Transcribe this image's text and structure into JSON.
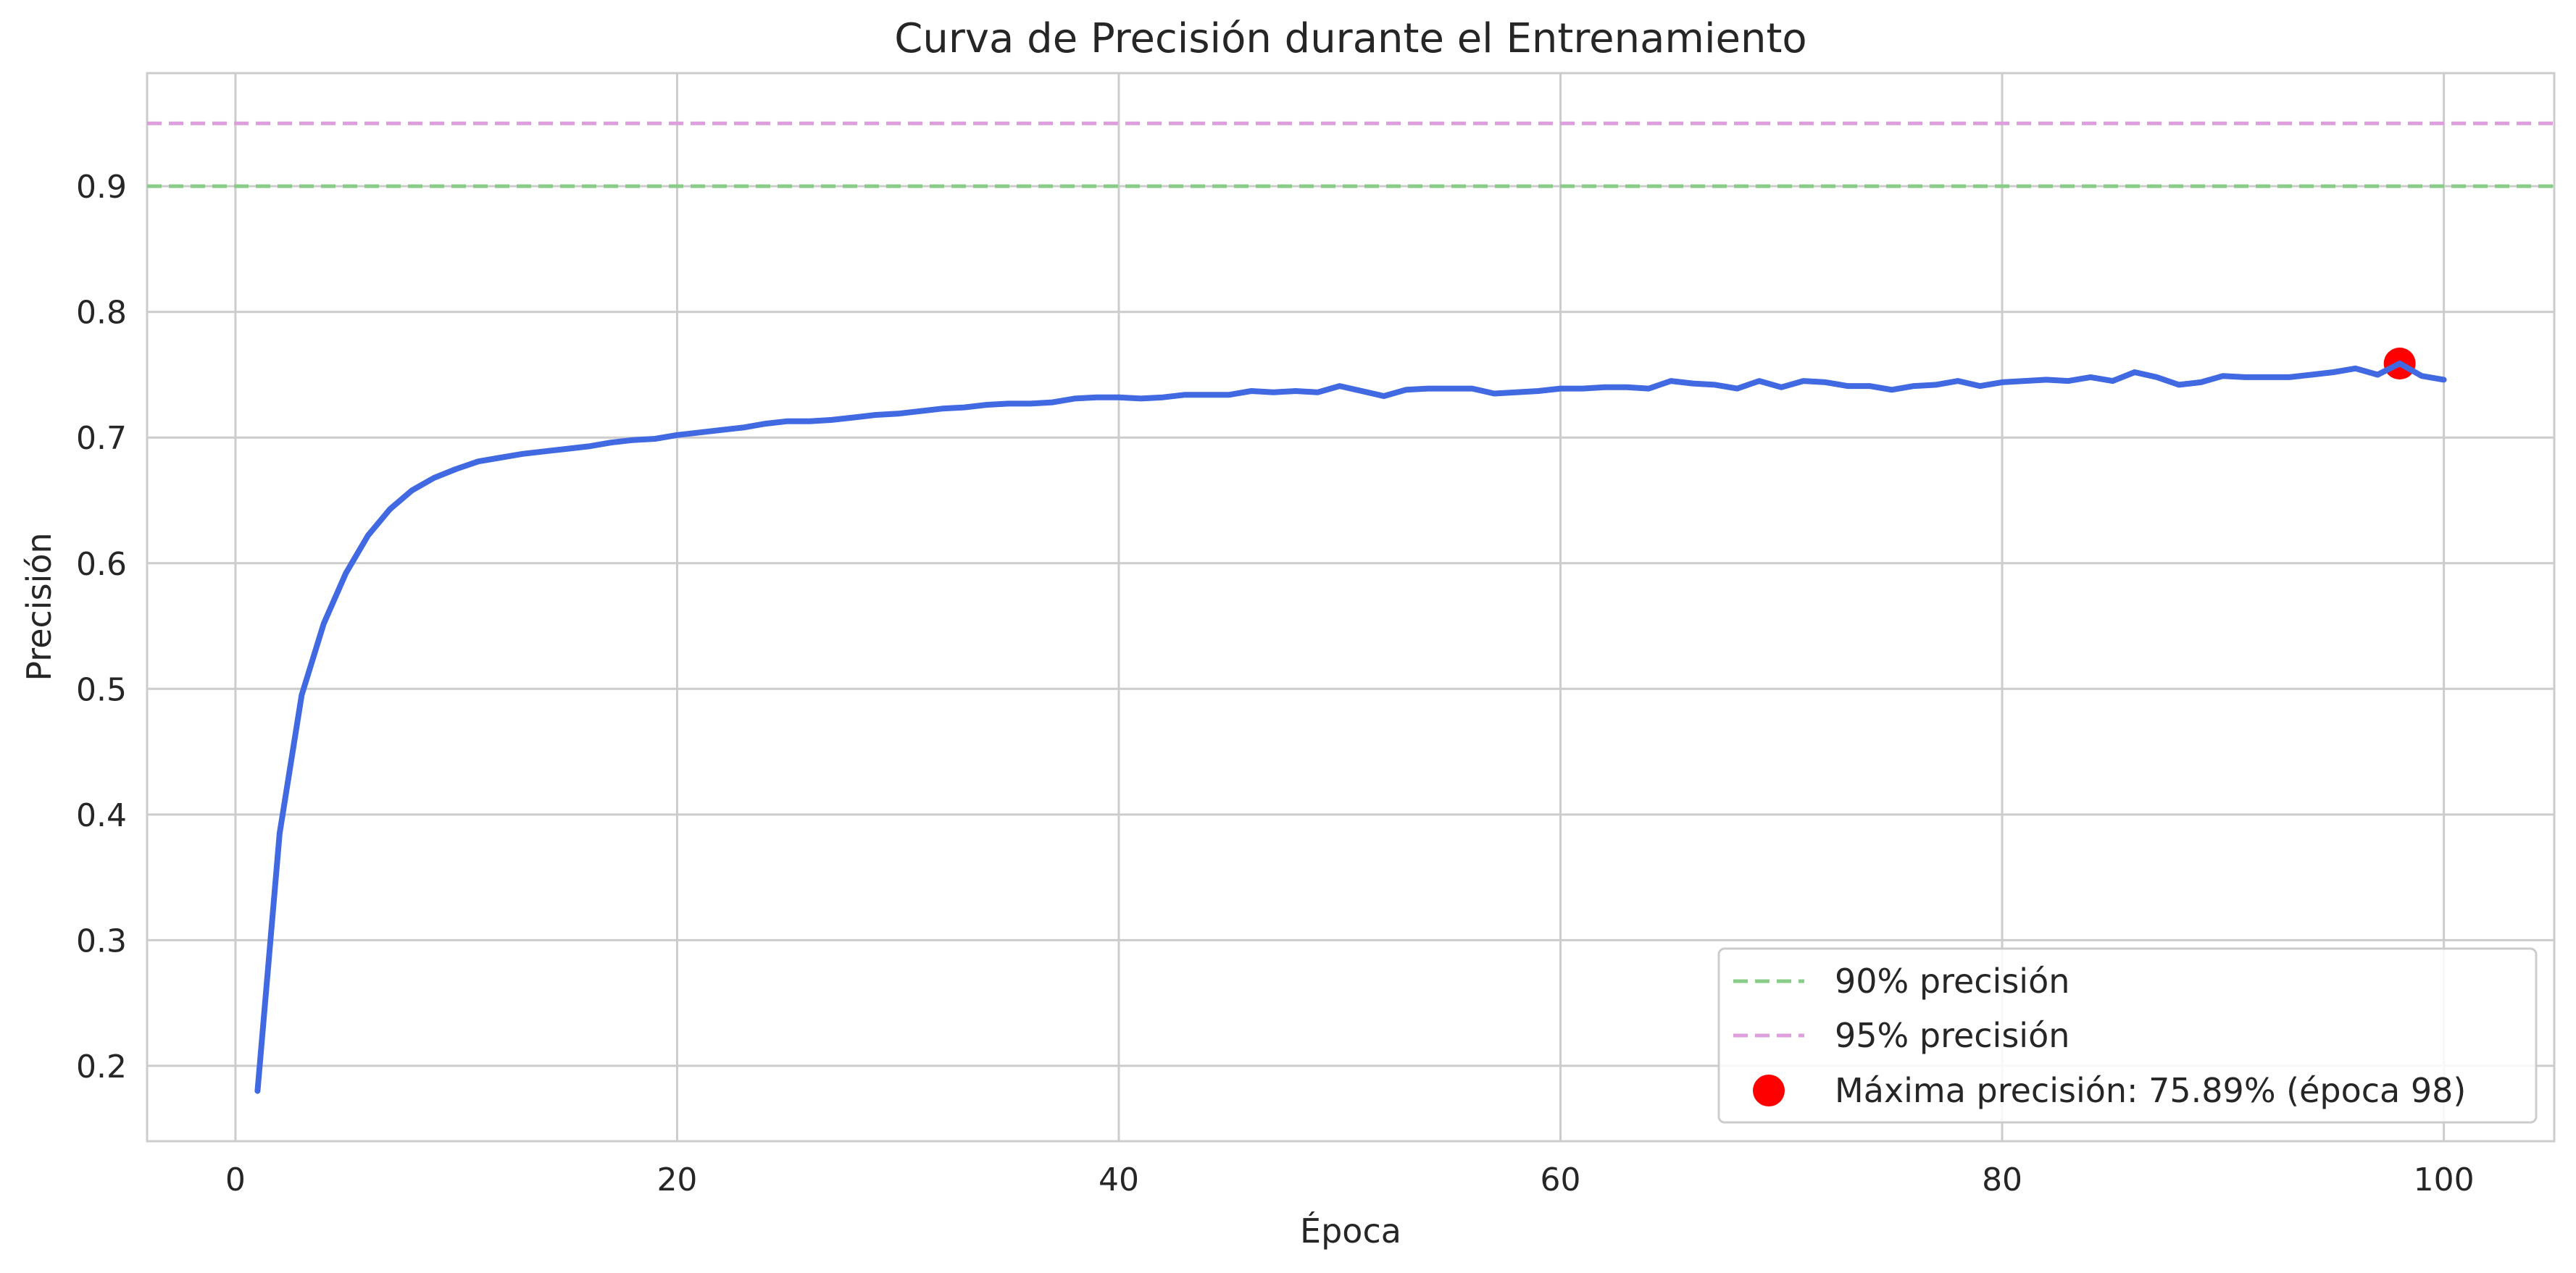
{
  "chart_data": {
    "type": "line",
    "title": "Curva de Precisión durante el Entrenamiento",
    "xlabel": "Época",
    "ylabel": "Precisión",
    "xlim": [
      -4,
      105
    ],
    "ylim": [
      0.14,
      0.99
    ],
    "xticks": [
      0,
      20,
      40,
      60,
      80,
      100
    ],
    "yticks": [
      0.2,
      0.3,
      0.4,
      0.5,
      0.6,
      0.7,
      0.8,
      0.9
    ],
    "grid": true,
    "legend_position": "lower-right",
    "series": [
      {
        "color": "#4169e1",
        "x": [
          1,
          2,
          3,
          4,
          5,
          6,
          7,
          8,
          9,
          10,
          11,
          12,
          13,
          14,
          15,
          16,
          17,
          18,
          19,
          20,
          21,
          22,
          23,
          24,
          25,
          26,
          27,
          28,
          29,
          30,
          31,
          32,
          33,
          34,
          35,
          36,
          37,
          38,
          39,
          40,
          41,
          42,
          43,
          44,
          45,
          46,
          47,
          48,
          49,
          50,
          51,
          52,
          53,
          54,
          55,
          56,
          57,
          58,
          59,
          60,
          61,
          62,
          63,
          64,
          65,
          66,
          67,
          68,
          69,
          70,
          71,
          72,
          73,
          74,
          75,
          76,
          77,
          78,
          79,
          80,
          81,
          82,
          83,
          84,
          85,
          86,
          87,
          88,
          89,
          90,
          91,
          92,
          93,
          94,
          95,
          96,
          97,
          98,
          99,
          100
        ],
        "y": [
          0.18,
          0.385,
          0.495,
          0.552,
          0.592,
          0.622,
          0.643,
          0.658,
          0.668,
          0.675,
          0.681,
          0.684,
          0.687,
          0.689,
          0.691,
          0.693,
          0.696,
          0.698,
          0.699,
          0.702,
          0.704,
          0.706,
          0.708,
          0.711,
          0.713,
          0.713,
          0.714,
          0.716,
          0.718,
          0.719,
          0.721,
          0.723,
          0.724,
          0.726,
          0.727,
          0.727,
          0.728,
          0.731,
          0.732,
          0.732,
          0.731,
          0.732,
          0.734,
          0.734,
          0.734,
          0.737,
          0.736,
          0.737,
          0.736,
          0.741,
          0.737,
          0.733,
          0.738,
          0.739,
          0.739,
          0.739,
          0.735,
          0.736,
          0.737,
          0.739,
          0.739,
          0.74,
          0.74,
          0.739,
          0.745,
          0.743,
          0.742,
          0.739,
          0.745,
          0.74,
          0.745,
          0.744,
          0.741,
          0.741,
          0.738,
          0.741,
          0.742,
          0.745,
          0.741,
          0.744,
          0.745,
          0.746,
          0.745,
          0.748,
          0.745,
          0.752,
          0.748,
          0.742,
          0.744,
          0.749,
          0.748,
          0.748,
          0.748,
          0.75,
          0.752,
          0.755,
          0.75,
          0.7589,
          0.749,
          0.746
        ]
      }
    ],
    "reference_lines": [
      {
        "y": 0.9,
        "label": "90% precisión",
        "color": "#88cc88",
        "style": "dashed"
      },
      {
        "y": 0.95,
        "label": "95% precisión",
        "color": "#dda0dd",
        "style": "dashed"
      }
    ],
    "highlight_point": {
      "x": 98,
      "y": 0.7589,
      "label": "Máxima precisión: 75.89% (época 98)",
      "color": "#ff0000"
    }
  }
}
